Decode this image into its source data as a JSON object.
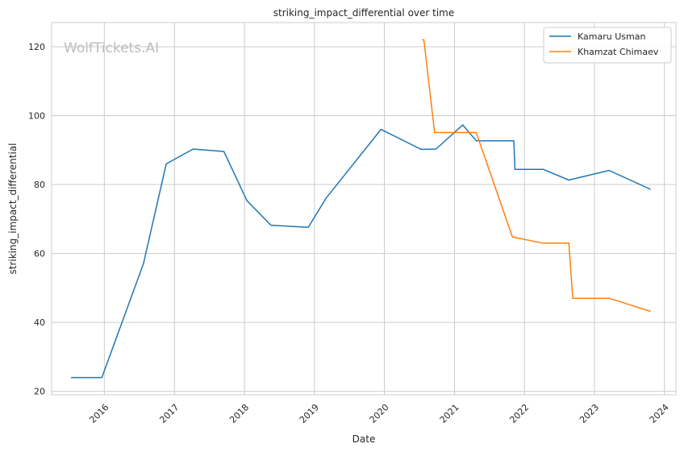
{
  "chart_data": {
    "type": "line",
    "title": "striking_impact_differential over time",
    "xlabel": "Date",
    "ylabel": "striking_impact_differential",
    "watermark": "WolfTickets.AI",
    "xlim": [
      "2015-04-01",
      "2024-03-01"
    ],
    "ylim": [
      19,
      127
    ],
    "x_ticks": [
      "2016",
      "2017",
      "2018",
      "2019",
      "2020",
      "2021",
      "2022",
      "2023",
      "2024"
    ],
    "y_ticks": [
      20,
      40,
      60,
      80,
      100,
      120
    ],
    "grid": true,
    "legend_position": "top-right",
    "series": [
      {
        "name": "Kamaru Usman",
        "color": "#1f77b4",
        "points": [
          [
            "2015-07-11",
            24.0
          ],
          [
            "2015-12-19",
            24.0
          ],
          [
            "2016-07-23",
            57.0
          ],
          [
            "2016-11-19",
            86.0
          ],
          [
            "2017-04-08",
            90.3
          ],
          [
            "2017-09-16",
            89.6
          ],
          [
            "2018-01-14",
            75.3
          ],
          [
            "2018-05-19",
            68.2
          ],
          [
            "2018-11-30",
            67.6
          ],
          [
            "2019-03-02",
            76.0
          ],
          [
            "2019-12-14",
            96.0
          ],
          [
            "2020-07-11",
            90.2
          ],
          [
            "2020-09-26",
            90.3
          ],
          [
            "2021-02-13",
            97.3
          ],
          [
            "2021-04-24",
            92.7
          ],
          [
            "2021-11-06",
            92.7
          ],
          [
            "2021-11-12",
            84.4
          ],
          [
            "2022-04-09",
            84.4
          ],
          [
            "2022-08-20",
            81.3
          ],
          [
            "2023-03-18",
            84.1
          ],
          [
            "2023-10-21",
            78.6
          ]
        ]
      },
      {
        "name": "Khamzat Chimaev",
        "color": "#ff7f0e",
        "points": [
          [
            "2020-07-16",
            122.0
          ],
          [
            "2020-07-25",
            122.0
          ],
          [
            "2020-09-19",
            95.1
          ],
          [
            "2021-04-24",
            95.1
          ],
          [
            "2021-10-30",
            64.8
          ],
          [
            "2022-04-09",
            63.0
          ],
          [
            "2022-08-20",
            63.0
          ],
          [
            "2022-09-10",
            47.0
          ],
          [
            "2023-03-18",
            47.0
          ],
          [
            "2023-10-21",
            43.2
          ]
        ]
      }
    ]
  }
}
